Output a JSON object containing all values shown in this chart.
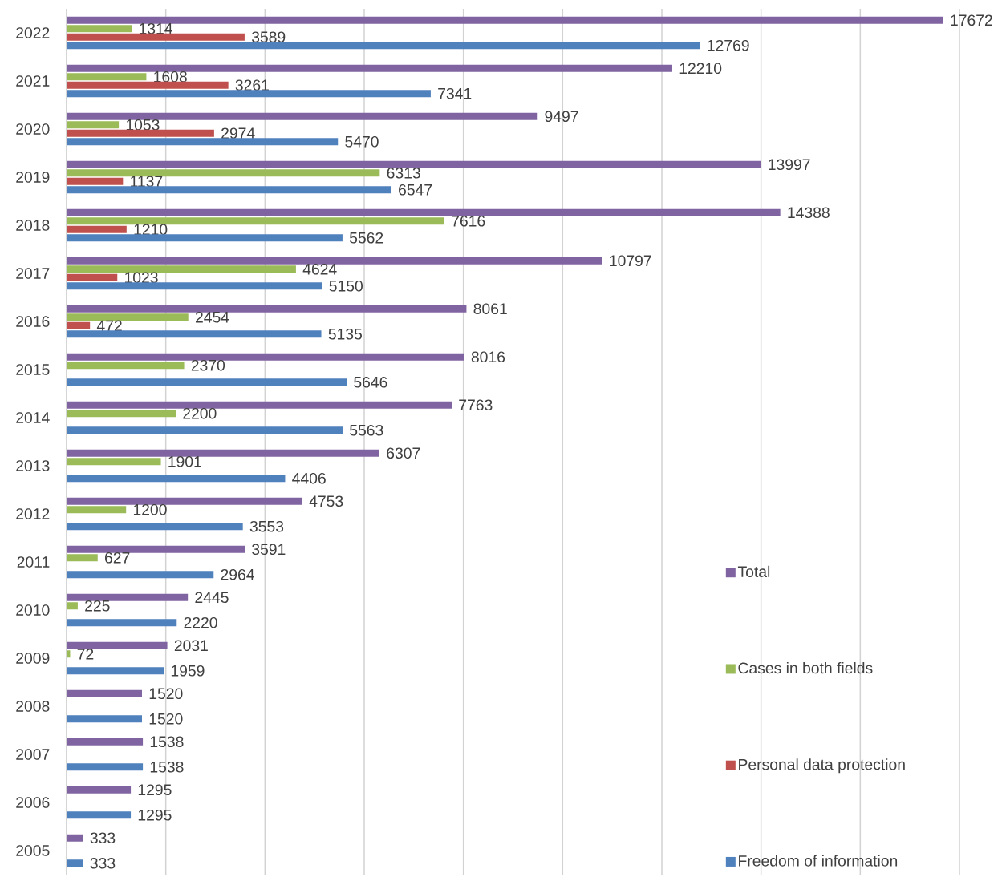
{
  "chart_data": {
    "type": "bar",
    "orientation": "horizontal",
    "categories": [
      "2022",
      "2021",
      "2020",
      "2019",
      "2018",
      "2017",
      "2016",
      "2015",
      "2014",
      "2013",
      "2012",
      "2011",
      "2010",
      "2009",
      "2008",
      "2007",
      "2006",
      "2005"
    ],
    "series": [
      {
        "name": "Total",
        "color": "#8064a2",
        "values": [
          17672,
          12210,
          9497,
          13997,
          14388,
          10797,
          8061,
          8016,
          7763,
          6307,
          4753,
          3591,
          2445,
          2031,
          1520,
          1538,
          1295,
          333
        ]
      },
      {
        "name": "Cases in both fields",
        "color": "#9bbb59",
        "values": [
          1314,
          1608,
          1053,
          6313,
          7616,
          4624,
          2454,
          2370,
          2200,
          1901,
          1200,
          627,
          225,
          72,
          null,
          null,
          null,
          null
        ]
      },
      {
        "name": "Personal data protection",
        "color": "#c0504d",
        "values": [
          3589,
          3261,
          2974,
          1137,
          1210,
          1023,
          472,
          null,
          null,
          null,
          null,
          null,
          null,
          null,
          null,
          null,
          null,
          null
        ]
      },
      {
        "name": "Freedom of information",
        "color": "#4f81bd",
        "values": [
          12769,
          7341,
          5470,
          6547,
          5562,
          5150,
          5135,
          5646,
          5563,
          4406,
          3553,
          2964,
          2220,
          1959,
          1520,
          1538,
          1295,
          333
        ]
      }
    ],
    "xlim": [
      0,
      18000
    ],
    "xticks": [
      {
        "value": 0,
        "label": null
      },
      {
        "value": 2000,
        "label": null
      },
      {
        "value": 4000,
        "label": null
      },
      {
        "value": 6000,
        "label": null
      },
      {
        "value": 8000,
        "label": null
      },
      {
        "value": 10000,
        "label": null
      },
      {
        "value": 12000,
        "label": null
      },
      {
        "value": 14000,
        "label": null
      },
      {
        "value": 16000,
        "label": null
      },
      {
        "value": 18000,
        "label": null
      }
    ],
    "tick_labels": "y",
    "grid": "x",
    "legend": "bottom right",
    "data_labels": true
  }
}
